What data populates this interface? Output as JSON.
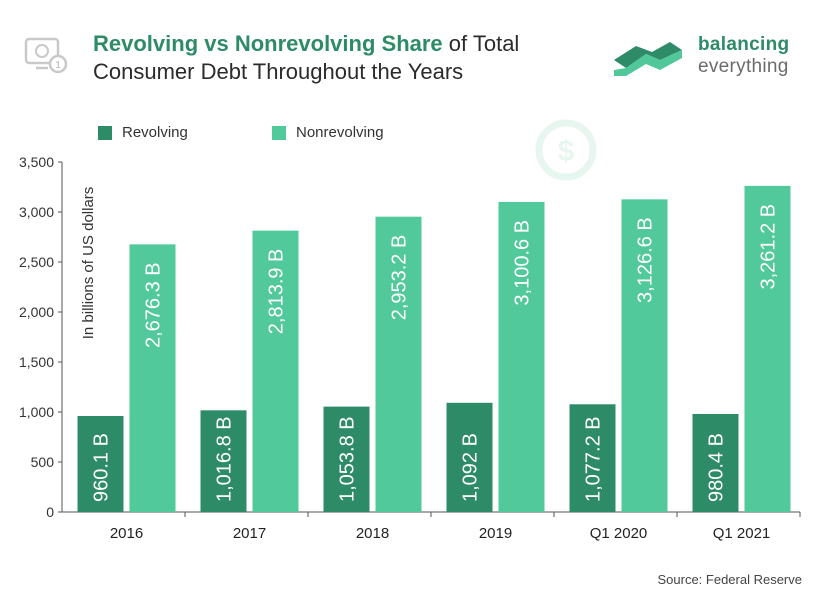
{
  "header": {
    "title_strong": "Revolving vs Nonrevolving Share",
    "title_rest": " of Total",
    "title_line2": "Consumer Debt Throughout the Years"
  },
  "brand": {
    "name_line1": "balancing",
    "name_line2": "everything",
    "color_primary": "#2e8b68",
    "color_secondary": "#52c79a"
  },
  "source": "Source: Federal Reserve",
  "colors": {
    "revolving": "#2e8b68",
    "nonrevolving": "#52c99a",
    "axis": "#555555",
    "watermark": "#e8f6f0"
  },
  "chart_data": {
    "type": "bar",
    "ylabel": "In billions of US dollars",
    "ylim": [
      0,
      3500
    ],
    "yticks": [
      0,
      500,
      1000,
      1500,
      2000,
      2500,
      3000,
      3500
    ],
    "ytick_labels": [
      "0",
      "500",
      "1,000",
      "1,500",
      "2,000",
      "2,500",
      "3,000",
      "3,500"
    ],
    "grid": false,
    "legend_position": "top-left",
    "categories": [
      "2016",
      "2017",
      "2018",
      "2019",
      "Q1 2020",
      "Q1 2021"
    ],
    "series": [
      {
        "name": "Revolving",
        "values": [
          960.1,
          1016.8,
          1053.8,
          1092,
          1077.2,
          980.4
        ],
        "labels": [
          "960.1 B",
          "1,016.8 B",
          "1,053.8 B",
          "1,092 B",
          "1,077.2 B",
          "980.4 B"
        ]
      },
      {
        "name": "Nonrevolving",
        "values": [
          2676.3,
          2813.9,
          2953.2,
          3100.6,
          3126.6,
          3261.2
        ],
        "labels": [
          "2,676.3 B",
          "2,813.9 B",
          "2,953.2 B",
          "3,100.6 B",
          "3,126.6 B",
          "3,261.2 B"
        ]
      }
    ]
  }
}
